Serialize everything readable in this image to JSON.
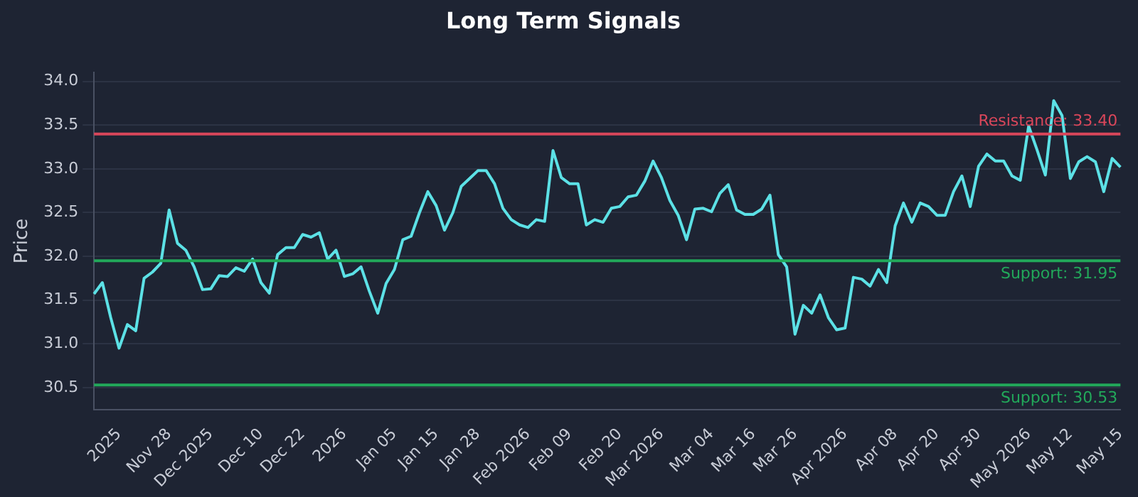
{
  "chart_data": {
    "type": "line",
    "title": "Long Term Signals",
    "ylabel": "Price",
    "categories": [
      null,
      null,
      null,
      "2025",
      null,
      null,
      null,
      null,
      null,
      "Nov 28",
      null,
      null,
      null,
      null,
      "Dec 2025",
      null,
      null,
      null,
      null,
      null,
      "Dec 10",
      null,
      null,
      null,
      null,
      "Dec 22",
      null,
      null,
      null,
      null,
      "2026",
      null,
      null,
      null,
      null,
      null,
      "Jan 05",
      null,
      null,
      null,
      null,
      "Jan 15",
      null,
      null,
      null,
      null,
      "Jan 28",
      null,
      null,
      null,
      null,
      null,
      "Feb 2026",
      null,
      null,
      null,
      null,
      "Feb 09",
      null,
      null,
      null,
      null,
      null,
      "Feb 20",
      null,
      null,
      null,
      null,
      "Mar 2026",
      null,
      null,
      null,
      null,
      null,
      "Mar 04",
      null,
      null,
      null,
      null,
      "Mar 16",
      null,
      null,
      null,
      null,
      "Mar 26",
      null,
      null,
      null,
      null,
      null,
      "Apr 2026",
      null,
      null,
      null,
      null,
      null,
      "Apr 08",
      null,
      null,
      null,
      null,
      "Apr 20",
      null,
      null,
      null,
      null,
      "Apr 30",
      null,
      null,
      null,
      null,
      null,
      "May 2026",
      null,
      null,
      null,
      null,
      "May 12",
      null,
      null,
      null,
      null,
      null,
      "May 15"
    ],
    "series": [
      {
        "color": "#5ce1e6",
        "values": [
          31.57,
          31.7,
          31.3,
          30.95,
          31.22,
          31.15,
          31.75,
          31.82,
          31.92,
          32.53,
          32.15,
          32.07,
          31.88,
          31.62,
          31.63,
          31.78,
          31.77,
          31.87,
          31.83,
          31.97,
          31.7,
          31.58,
          32.02,
          32.1,
          32.1,
          32.25,
          32.22,
          32.27,
          31.97,
          32.07,
          31.77,
          31.8,
          31.88,
          31.6,
          31.35,
          31.69,
          31.85,
          32.19,
          32.23,
          32.5,
          32.74,
          32.58,
          32.3,
          32.5,
          32.8,
          32.89,
          32.98,
          32.98,
          32.83,
          32.55,
          32.42,
          32.36,
          32.33,
          32.42,
          32.4,
          33.21,
          32.9,
          32.83,
          32.83,
          32.36,
          32.42,
          32.39,
          32.55,
          32.57,
          32.68,
          32.7,
          32.86,
          33.09,
          32.9,
          32.64,
          32.47,
          32.19,
          32.54,
          32.55,
          32.51,
          32.72,
          32.82,
          32.53,
          32.48,
          32.48,
          32.54,
          32.7,
          32.02,
          31.88,
          31.11,
          31.44,
          31.35,
          31.56,
          31.3,
          31.16,
          31.18,
          31.76,
          31.74,
          31.66,
          31.85,
          31.7,
          32.35,
          32.61,
          32.39,
          32.61,
          32.57,
          32.47,
          32.47,
          32.74,
          32.92,
          32.57,
          33.03,
          33.17,
          33.09,
          33.09,
          32.92,
          32.87,
          33.49,
          33.22,
          32.93,
          33.78,
          33.61,
          32.89,
          33.08,
          33.14,
          33.08,
          32.74,
          33.12,
          33.02
        ]
      }
    ],
    "ylim": [
      30.25,
      34.1
    ],
    "yticks": [
      {
        "value": 30.5,
        "label": "30.5"
      },
      {
        "value": 31,
        "label": "31.0"
      },
      {
        "value": 31.5,
        "label": "31.5"
      },
      {
        "value": 32,
        "label": "32.0"
      },
      {
        "value": 32.5,
        "label": "32.5"
      },
      {
        "value": 33,
        "label": "33.0"
      },
      {
        "value": 33.5,
        "label": "33.5"
      },
      {
        "value": 34,
        "label": "34.0"
      }
    ],
    "grid": "y",
    "legend": false,
    "marker": "none",
    "line_style": "solid",
    "ref_lines": [
      {
        "axis": "y",
        "value": 33.4,
        "label": "Resistance: 33.40",
        "color": "#d9465a"
      },
      {
        "axis": "y",
        "value": 31.95,
        "label": "Support: 31.95",
        "color": "#22a85a"
      },
      {
        "axis": "y",
        "value": 30.53,
        "label": "Support: 30.53",
        "color": "#22a85a"
      }
    ]
  }
}
